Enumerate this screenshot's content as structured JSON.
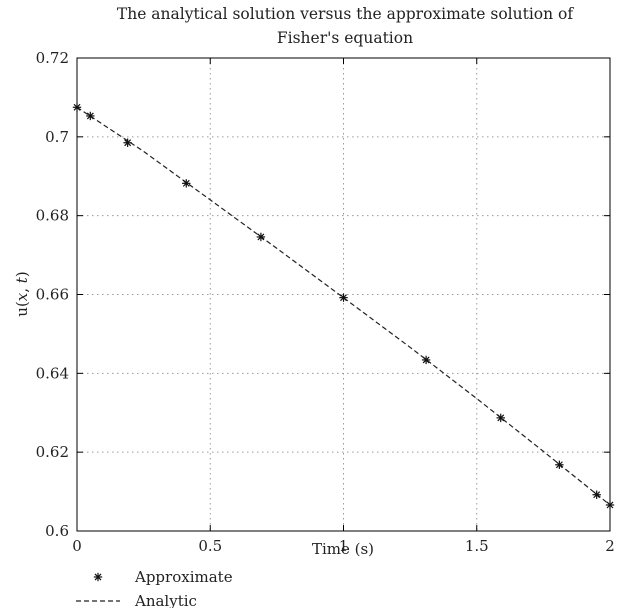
{
  "chart_data": {
    "type": "line",
    "title_lines": [
      "The analytical solution versus the approximate solution of",
      "Fisher's equation"
    ],
    "xlabel": "Time (s)",
    "ylabel_base": "u(",
    "ylabel_var1": "x",
    "ylabel_sep": ", ",
    "ylabel_var2": "t",
    "ylabel_close": ")",
    "xlim": [
      0,
      2
    ],
    "ylim": [
      0.6,
      0.72
    ],
    "xticks": [
      0,
      0.5,
      1,
      1.5,
      2
    ],
    "xtick_labels": [
      "0",
      "0.5",
      "1",
      "1.5",
      "2"
    ],
    "yticks": [
      0.6,
      0.62,
      0.64,
      0.66,
      0.68,
      0.7,
      0.72
    ],
    "ytick_labels": [
      "0.6",
      "0.62",
      "0.64",
      "0.66",
      "0.68",
      "0.7",
      "0.72"
    ],
    "grid": true,
    "legend_position": "below-left",
    "series": [
      {
        "name": "Approximate",
        "style": "star-markers",
        "color": "#111111",
        "x": [
          0.0,
          0.05,
          0.19,
          0.41,
          0.69,
          1.0,
          1.31,
          1.59,
          1.81,
          1.95,
          2.0
        ],
        "y": [
          0.7075,
          0.7053,
          0.6985,
          0.6882,
          0.6746,
          0.6592,
          0.6434,
          0.6287,
          0.6168,
          0.6092,
          0.6066
        ]
      },
      {
        "name": "Analytic",
        "style": "dashed-line",
        "color": "#222222",
        "x": [
          0.0,
          0.25,
          0.5,
          0.75,
          1.0,
          1.25,
          1.5,
          1.75,
          2.0
        ],
        "y": [
          0.7075,
          0.6963,
          0.684,
          0.6717,
          0.6592,
          0.6466,
          0.6336,
          0.6202,
          0.6066
        ]
      }
    ]
  }
}
